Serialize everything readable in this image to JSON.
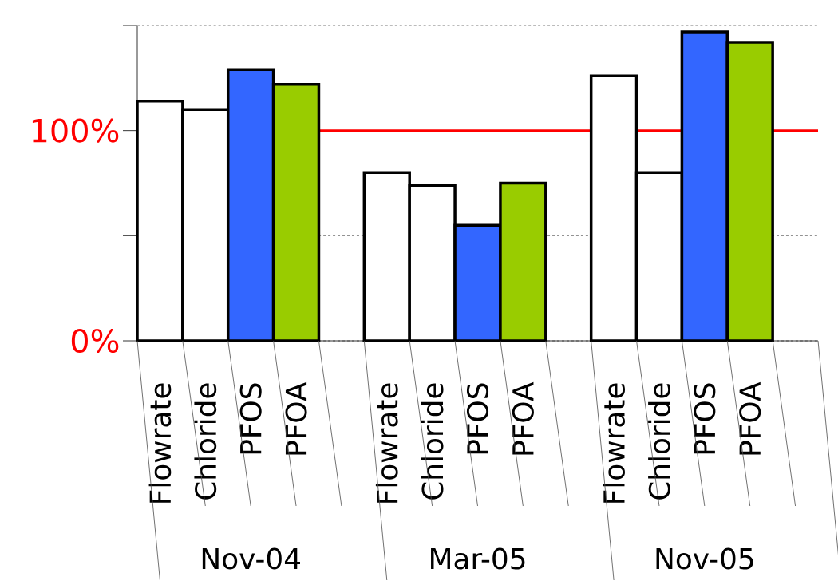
{
  "chart_data": {
    "type": "bar",
    "categories": [
      "Flowrate",
      "Chloride",
      "PFOS",
      "PFOA",
      null,
      "Flowrate",
      "Chloride",
      "PFOS",
      "PFOA",
      null,
      "Flowrate",
      "Chloride",
      "PFOS",
      "PFOA",
      null
    ],
    "values": [
      114,
      110,
      129,
      122,
      null,
      80,
      74,
      55,
      75,
      null,
      126,
      80,
      147,
      142,
      null
    ],
    "colors": [
      "#ffffff",
      "#ffffff",
      "#3366ff",
      "#99cc00",
      null,
      "#ffffff",
      "#ffffff",
      "#3366ff",
      "#99cc00",
      null,
      "#ffffff",
      "#ffffff",
      "#3366ff",
      "#99cc00",
      null
    ],
    "ylim": [
      0,
      150
    ],
    "yticks": [
      {
        "value": 0,
        "label": "0%"
      },
      {
        "value": 50,
        "label": null
      },
      {
        "value": 100,
        "label": "100%"
      },
      {
        "value": 150,
        "label": null
      }
    ],
    "grid": "y",
    "ref_lines": [
      {
        "axis": "y",
        "value": 100,
        "color": "#ff0000"
      }
    ],
    "annotations": [
      "Nov-04",
      "Mar-05",
      "Nov-05"
    ]
  }
}
